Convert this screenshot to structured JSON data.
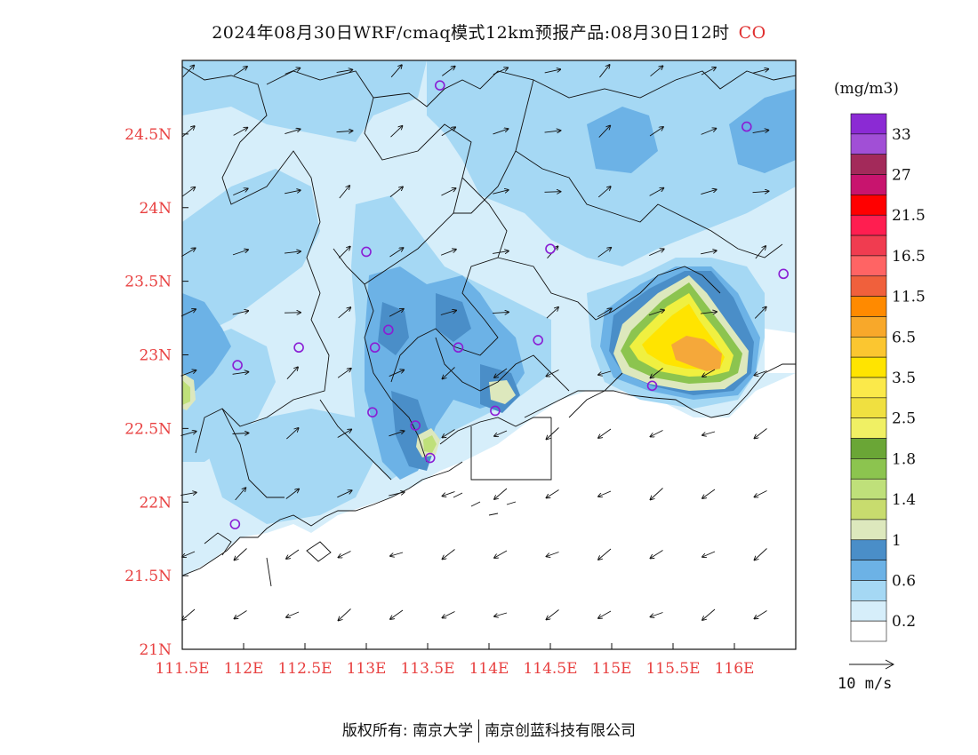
{
  "title": {
    "text": "2024年08月30日WRF/cmaq模式12km预报产品:08月30日12时",
    "variable": "CO"
  },
  "map": {
    "lat_ticks": [
      "24.5N",
      "24N",
      "23.5N",
      "23N",
      "22.5N",
      "22N",
      "21.5N",
      "21N"
    ],
    "lon_ticks": [
      "111.5E",
      "112E",
      "112.5E",
      "113E",
      "113.5E",
      "114E",
      "114.5E",
      "115E",
      "115.5E",
      "116E"
    ],
    "extent": {
      "lon": [
        111.5,
        116.5
      ],
      "lat": [
        21,
        25
      ]
    },
    "stations": [
      {
        "lon": 113.6,
        "lat": 24.83
      },
      {
        "lon": 116.1,
        "lat": 24.55
      },
      {
        "lon": 113.0,
        "lat": 23.7
      },
      {
        "lon": 114.5,
        "lat": 23.72
      },
      {
        "lon": 116.4,
        "lat": 23.55
      },
      {
        "lon": 112.45,
        "lat": 23.05
      },
      {
        "lon": 111.95,
        "lat": 22.93
      },
      {
        "lon": 113.07,
        "lat": 23.05
      },
      {
        "lon": 113.18,
        "lat": 23.17
      },
      {
        "lon": 113.75,
        "lat": 23.05
      },
      {
        "lon": 114.4,
        "lat": 23.1
      },
      {
        "lon": 113.05,
        "lat": 22.61
      },
      {
        "lon": 113.4,
        "lat": 22.52
      },
      {
        "lon": 114.05,
        "lat": 22.62
      },
      {
        "lon": 113.52,
        "lat": 22.3
      },
      {
        "lon": 111.93,
        "lat": 21.85
      },
      {
        "lon": 115.33,
        "lat": 22.79
      }
    ],
    "hotspot_levels": [
      {
        "name": "lt-green",
        "value": 1.2,
        "color": "#dde8bd"
      },
      {
        "name": "green",
        "value": 1.6,
        "color": "#8cc44f"
      },
      {
        "name": "yellow-green",
        "value": 2.5,
        "color": "#f0f040"
      },
      {
        "name": "yellow",
        "value": 3.5,
        "color": "#ffe400"
      },
      {
        "name": "orange",
        "value": 6.5,
        "color": "#f5a83a"
      }
    ]
  },
  "colorbar": {
    "unit": "(mg/m3)",
    "colors": [
      "#8b2ad4",
      "#a14fd6",
      "#a32a5a",
      "#c8146e",
      "#ff0000",
      "#ff1e50",
      "#f03c50",
      "#ff6464",
      "#f0603c",
      "#ff8a00",
      "#f8a82a",
      "#fbc630",
      "#ffe400",
      "#fbe94a",
      "#f0e040",
      "#f0f064",
      "#6aa636",
      "#8cc44f",
      "#bfe07a",
      "#c8dc6e",
      "#dde8bd",
      "#4a8ec8",
      "#6cb2e6",
      "#a5d8f4",
      "#d6eefa",
      "#ffffff"
    ],
    "labels": [
      "33",
      "27",
      "21.5",
      "16.5",
      "11.5",
      "6.5",
      "3.5",
      "2.5",
      "1.8",
      "1.4",
      "1",
      "0.6",
      "0.2"
    ]
  },
  "wind_scale": {
    "label": "10  m/s"
  },
  "footer": {
    "left": "版权所有: 南京大学",
    "right": "南京创蓝科技有限公司"
  }
}
